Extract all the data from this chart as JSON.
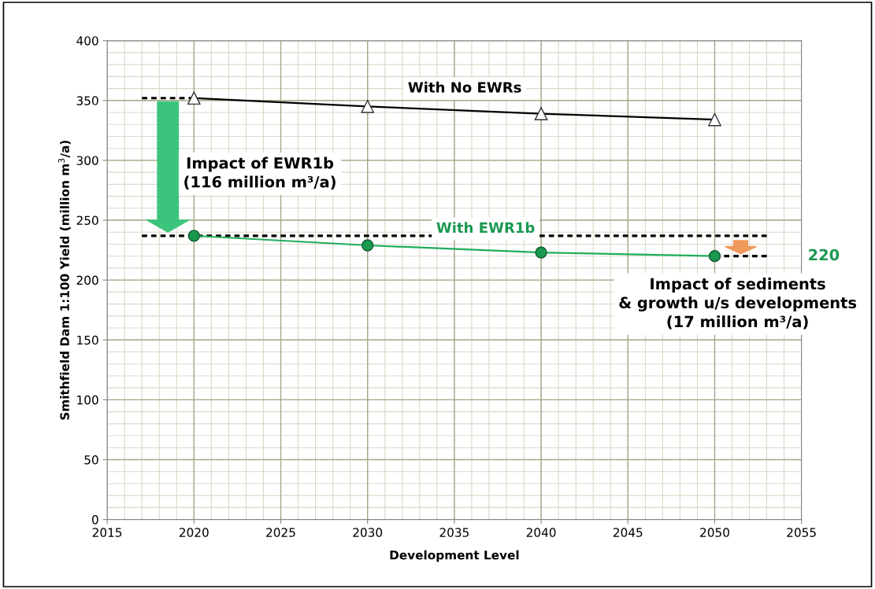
{
  "chart_data": {
    "type": "line",
    "xlabel": "Development Level",
    "ylabel": "Smithfield Dam 1:100 Yield (million m$^{3}$/a)",
    "x": [
      2020,
      2030,
      2040,
      2050
    ],
    "xlim": [
      2015,
      2055
    ],
    "xticks": [
      2015,
      2020,
      2025,
      2030,
      2035,
      2040,
      2045,
      2050,
      2055
    ],
    "ylim": [
      0,
      400
    ],
    "yticks": [
      0,
      50,
      100,
      150,
      200,
      250,
      300,
      350,
      400
    ],
    "grid": true,
    "series": [
      {
        "color": "#000000",
        "values": [
          352,
          345,
          339,
          334
        ],
        "marker": "triangle",
        "line_style": "solid"
      },
      {
        "color": "#1fae5b",
        "values": [
          237,
          229,
          223,
          220
        ],
        "marker": "circle",
        "line_style": "solid"
      },
      {
        "color": "#000000",
        "x": [
          2017,
          2020
        ],
        "values": [
          352,
          352
        ],
        "marker": "none",
        "line_style": "dashed"
      },
      {
        "color": "#000000",
        "x": [
          2017,
          2053
        ],
        "values": [
          237,
          237
        ],
        "marker": "none",
        "line_style": "dashed"
      },
      {
        "color": "#000000",
        "x": [
          2050,
          2053
        ],
        "values": [
          220,
          220
        ],
        "marker": "none",
        "line_style": "dashed"
      }
    ],
    "annotations": [
      "With No EWRs",
      "With EWR1b",
      "220",
      "Impact of EWR1b\n(116 million m³/a)",
      "Impact of sediments\n& growth u/s developments\n(17 million m³/a)"
    ]
  }
}
